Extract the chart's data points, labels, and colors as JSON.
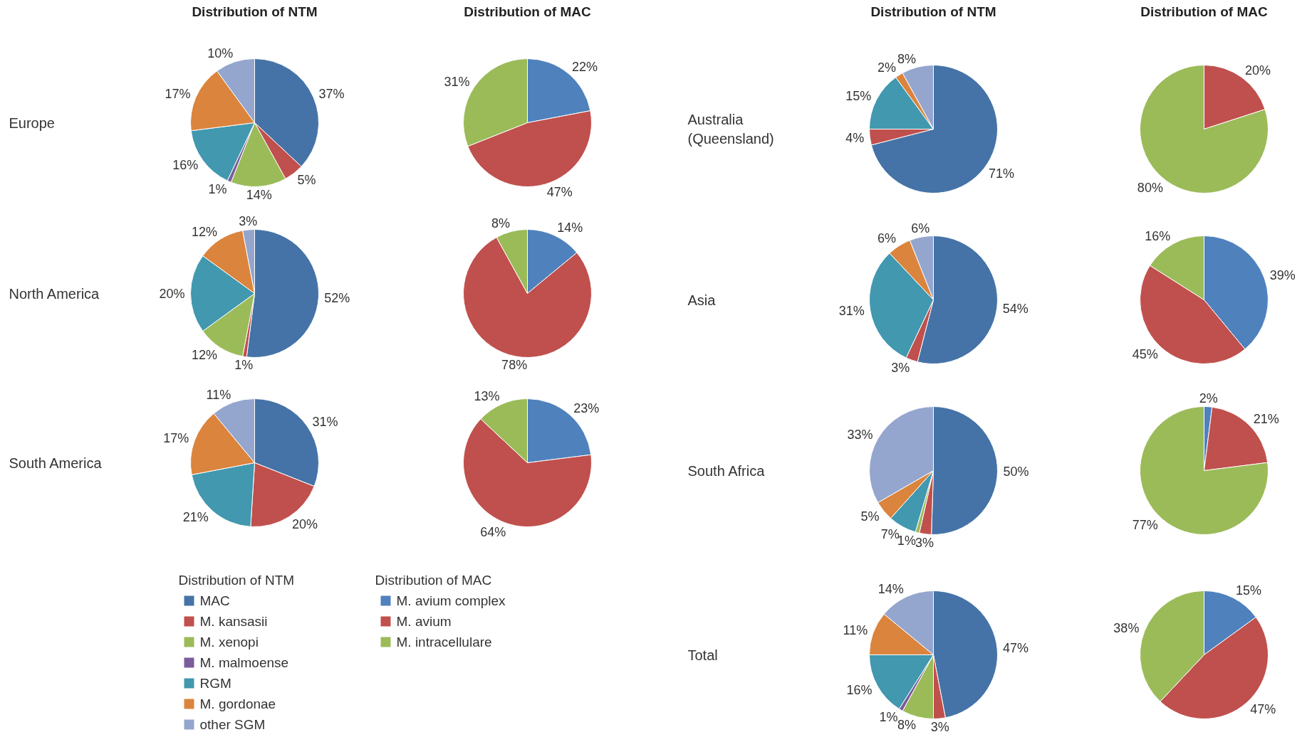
{
  "chart_data": [
    {
      "type": "pie",
      "title": "Distribution of NTM",
      "ylabel": "Europe",
      "categories": [
        "MAC",
        "M. kansasii",
        "M. xenopi",
        "M. malmoense",
        "RGM",
        "M. gordonae",
        "other SGM"
      ],
      "values": [
        37,
        5,
        14,
        1,
        16,
        17,
        10
      ],
      "colors": [
        "#4573a7",
        "#c0504d",
        "#9bbb59",
        "#7b5d9b",
        "#4198af",
        "#db843d",
        "#94a6ce"
      ],
      "value_labels": [
        "37%",
        "5%",
        "14%",
        "1%",
        "16%",
        "17%",
        "10%"
      ],
      "legend": "bottom",
      "legend_title": "Distribution of NTM"
    },
    {
      "type": "pie",
      "title": "Distribution of MAC",
      "categories": [
        "M. avium complex",
        "M. avium",
        "M. intracellulare"
      ],
      "values": [
        22,
        47,
        31
      ],
      "colors": [
        "#4f81bd",
        "#c0504d",
        "#9bbb59"
      ],
      "value_labels": [
        "22%",
        "47%",
        "31%"
      ],
      "legend": "bottom",
      "legend_title": "Distribution of MAC"
    },
    {
      "type": "pie",
      "title": "Distribution of NTM",
      "ylabel": "Australia\n(Queensland)",
      "categories": [
        null,
        null,
        null,
        null,
        null,
        null,
        null
      ],
      "values": [
        71,
        4,
        0,
        0,
        15,
        2,
        8
      ],
      "colors": [
        "#4573a7",
        "#c0504d",
        "#9bbb59",
        "#7b5d9b",
        "#4198af",
        "#db843d",
        "#94a6ce"
      ],
      "value_labels": [
        "71%",
        "4%",
        null,
        null,
        "15%",
        "2%",
        "8%"
      ]
    },
    {
      "type": "pie",
      "title": "Distribution of MAC",
      "categories": [
        null,
        null,
        null
      ],
      "values": [
        0,
        20,
        80
      ],
      "colors": [
        "#4f81bd",
        "#c0504d",
        "#9bbb59"
      ],
      "value_labels": [
        null,
        "20%",
        "80%"
      ]
    },
    {
      "type": "pie",
      "ylabel": "North America",
      "categories": [
        null,
        null,
        null,
        null,
        null,
        null,
        null
      ],
      "values": [
        52,
        1,
        12,
        0,
        20,
        12,
        3
      ],
      "colors": [
        "#4573a7",
        "#c0504d",
        "#9bbb59",
        "#7b5d9b",
        "#4198af",
        "#db843d",
        "#94a6ce"
      ],
      "value_labels": [
        "52%",
        "1%",
        "12%",
        null,
        "20%",
        "12%",
        "3%"
      ]
    },
    {
      "type": "pie",
      "categories": [
        null,
        null,
        null
      ],
      "values": [
        14,
        78,
        8
      ],
      "colors": [
        "#4f81bd",
        "#c0504d",
        "#9bbb59"
      ],
      "value_labels": [
        "14%",
        "78%",
        "8%"
      ]
    },
    {
      "type": "pie",
      "ylabel": "Asia",
      "categories": [
        null,
        null,
        null,
        null,
        null,
        null,
        null
      ],
      "values": [
        54,
        3,
        0,
        0,
        31,
        6,
        6
      ],
      "colors": [
        "#4573a7",
        "#c0504d",
        "#9bbb59",
        "#7b5d9b",
        "#4198af",
        "#db843d",
        "#94a6ce"
      ],
      "value_labels": [
        "54%",
        "3%",
        null,
        null,
        "31%",
        "6%",
        "6%"
      ]
    },
    {
      "type": "pie",
      "categories": [
        null,
        null,
        null
      ],
      "values": [
        39,
        45,
        16
      ],
      "colors": [
        "#4f81bd",
        "#c0504d",
        "#9bbb59"
      ],
      "value_labels": [
        "39%",
        "45%",
        "16%"
      ]
    },
    {
      "type": "pie",
      "ylabel": "South America",
      "categories": [
        null,
        null,
        null,
        null,
        null,
        null,
        null
      ],
      "values": [
        31,
        20,
        0,
        0,
        21,
        17,
        11
      ],
      "colors": [
        "#4573a7",
        "#c0504d",
        "#9bbb59",
        "#7b5d9b",
        "#4198af",
        "#db843d",
        "#94a6ce"
      ],
      "value_labels": [
        "31%",
        "20%",
        null,
        null,
        "21%",
        "17%",
        "11%"
      ]
    },
    {
      "type": "pie",
      "categories": [
        null,
        null,
        null
      ],
      "values": [
        23,
        64,
        13
      ],
      "colors": [
        "#4f81bd",
        "#c0504d",
        "#9bbb59"
      ],
      "value_labels": [
        "23%",
        "64%",
        "13%"
      ]
    },
    {
      "type": "pie",
      "ylabel": "South Africa",
      "categories": [
        null,
        null,
        null,
        null,
        null,
        null,
        null
      ],
      "values": [
        50,
        3,
        1,
        0,
        7,
        5,
        33
      ],
      "colors": [
        "#4573a7",
        "#c0504d",
        "#9bbb59",
        "#7b5d9b",
        "#4198af",
        "#db843d",
        "#94a6ce"
      ],
      "value_labels": [
        "50%",
        "3%",
        "1%",
        null,
        "7%",
        "5%",
        "33%"
      ]
    },
    {
      "type": "pie",
      "categories": [
        null,
        null,
        null
      ],
      "values": [
        2,
        21,
        77
      ],
      "colors": [
        "#4f81bd",
        "#c0504d",
        "#9bbb59"
      ],
      "value_labels": [
        "2%",
        "21%",
        "77%"
      ]
    },
    {
      "type": "pie",
      "ylabel": "Total",
      "categories": [
        null,
        null,
        null,
        null,
        null,
        null,
        null
      ],
      "values": [
        47,
        3,
        8,
        1,
        16,
        11,
        14
      ],
      "colors": [
        "#4573a7",
        "#c0504d",
        "#9bbb59",
        "#7b5d9b",
        "#4198af",
        "#db843d",
        "#94a6ce"
      ],
      "value_labels": [
        "47%",
        "3%",
        "8%",
        "1%",
        "16%",
        "11%",
        "14%"
      ]
    },
    {
      "type": "pie",
      "categories": [
        null,
        null,
        null
      ],
      "values": [
        15,
        47,
        38
      ],
      "colors": [
        "#4f81bd",
        "#c0504d",
        "#9bbb59"
      ],
      "value_labels": [
        "15%",
        "47%",
        "38%"
      ]
    }
  ]
}
